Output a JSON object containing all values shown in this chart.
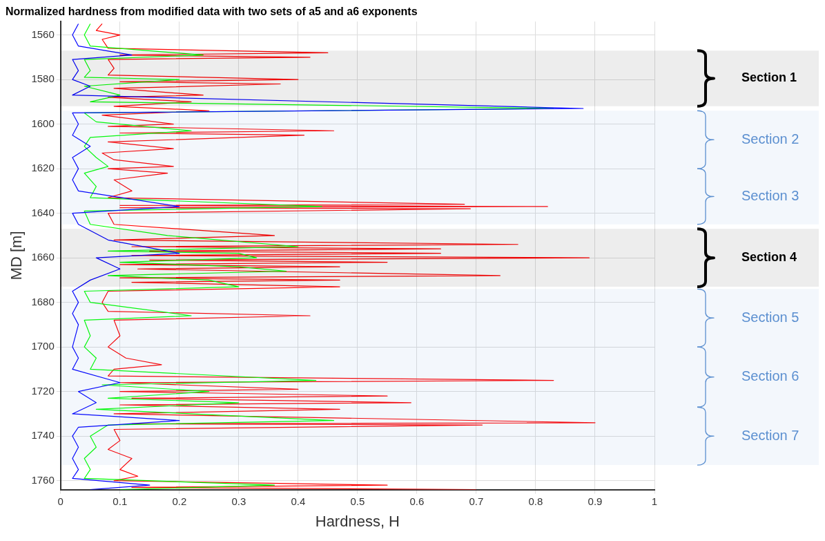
{
  "chart_data": {
    "type": "line",
    "title": "Normalized hardness from modified data with two sets of a5 and a6 exponents",
    "xlabel": "Hardness, H",
    "ylabel": "MD [m]",
    "xlim": [
      0,
      1
    ],
    "xticks": [
      0,
      0.1,
      0.2,
      0.3,
      0.4,
      0.5,
      0.6,
      0.7,
      0.8,
      0.9,
      1
    ],
    "ylim": [
      1764,
      1554
    ],
    "yticks": [
      1560,
      1580,
      1600,
      1620,
      1640,
      1660,
      1680,
      1700,
      1720,
      1740,
      1760
    ],
    "grid": true,
    "legend": false,
    "marker": "none",
    "line_style": "solid",
    "series": [
      {
        "color": "#ff0000",
        "x": [
          0.07,
          0.06,
          0.1,
          0.07,
          0.08,
          0.45,
          0.1,
          0.42,
          0.08,
          0.09,
          0.08,
          0.4,
          0.1,
          0.37,
          0.09,
          0.24,
          0.08,
          0.22,
          0.09,
          0.25,
          0.07,
          0.19,
          0.08,
          0.46,
          0.1,
          0.41,
          0.08,
          0.19,
          0.07,
          0.09,
          0.19,
          0.08,
          0.18,
          0.09,
          0.12,
          0.08,
          0.68,
          0.1,
          0.82,
          0.1,
          0.69,
          0.08,
          0.09,
          0.36,
          0.09,
          0.77,
          0.12,
          0.64,
          0.15,
          0.64,
          0.12,
          0.89,
          0.15,
          0.55,
          0.1,
          0.47,
          0.13,
          0.74,
          0.1,
          0.47,
          0.12,
          0.47,
          0.08,
          0.07,
          0.08,
          0.42,
          0.09,
          0.1,
          0.08,
          0.11,
          0.17,
          0.09,
          0.08,
          0.83,
          0.1,
          0.4,
          0.1,
          0.55,
          0.12,
          0.59,
          0.1,
          0.47,
          0.09,
          0.9,
          0.12,
          0.71,
          0.09,
          0.1,
          0.08,
          0.12,
          0.1,
          0.13,
          0.09,
          0.55,
          0.12,
          0.7
        ],
        "values": [
          1555,
          1558,
          1560,
          1562,
          1566,
          1568,
          1569,
          1570,
          1571,
          1575,
          1578,
          1580,
          1581,
          1582,
          1584,
          1587,
          1588,
          1590,
          1592,
          1594,
          1596,
          1600,
          1601,
          1603,
          1604,
          1605,
          1608,
          1611,
          1613,
          1616,
          1619,
          1620,
          1622,
          1625,
          1630,
          1633,
          1636,
          1636.5,
          1637,
          1637.5,
          1638,
          1640,
          1645,
          1650,
          1652,
          1654,
          1655,
          1656,
          1657,
          1658,
          1659,
          1660,
          1661,
          1662,
          1663,
          1664,
          1665,
          1668,
          1669,
          1670,
          1671,
          1673,
          1675,
          1680,
          1684,
          1686,
          1688,
          1695,
          1700,
          1705,
          1708,
          1710,
          1713,
          1715,
          1716,
          1719,
          1720,
          1722,
          1723,
          1725,
          1726,
          1728,
          1730,
          1734,
          1734.5,
          1735,
          1737,
          1742,
          1746,
          1750,
          1755,
          1758,
          1760,
          1762,
          1763,
          1764
        ]
      },
      {
        "color": "#00ff00",
        "x": [
          0.05,
          0.04,
          0.05,
          0.24,
          0.04,
          0.05,
          0.04,
          0.2,
          0.04,
          0.1,
          0.05,
          0.83,
          0.04,
          0.06,
          0.22,
          0.05,
          0.04,
          0.06,
          0.08,
          0.04,
          0.06,
          0.05,
          0.44,
          0.04,
          0.05,
          0.18,
          0.4,
          0.08,
          0.3,
          0.33,
          0.1,
          0.3,
          0.38,
          0.08,
          0.25,
          0.3,
          0.04,
          0.05,
          0.22,
          0.04,
          0.05,
          0.04,
          0.06,
          0.05,
          0.43,
          0.07,
          0.25,
          0.08,
          0.3,
          0.06,
          0.46,
          0.08,
          0.05,
          0.06,
          0.04,
          0.05,
          0.04,
          0.36,
          0.1
        ],
        "values": [
          1555,
          1560,
          1565,
          1569,
          1571,
          1576,
          1579,
          1580,
          1583,
          1587,
          1590,
          1593,
          1595,
          1599,
          1603,
          1606,
          1610,
          1615,
          1619,
          1622,
          1628,
          1633,
          1637,
          1639,
          1645,
          1650,
          1655,
          1657,
          1658,
          1660,
          1662,
          1664,
          1666,
          1668,
          1670,
          1673,
          1675,
          1680,
          1686,
          1688,
          1695,
          1700,
          1705,
          1710,
          1715,
          1717,
          1720,
          1723,
          1725,
          1728,
          1733,
          1735,
          1740,
          1745,
          1750,
          1755,
          1759,
          1762,
          1764
        ]
      },
      {
        "color": "#0000ff",
        "x": [
          0.03,
          0.02,
          0.03,
          0.12,
          0.02,
          0.03,
          0.02,
          0.05,
          0.02,
          0.88,
          0.02,
          0.03,
          0.02,
          0.05,
          0.02,
          0.03,
          0.02,
          0.03,
          0.2,
          0.02,
          0.03,
          0.08,
          0.2,
          0.06,
          0.1,
          0.05,
          0.02,
          0.03,
          0.02,
          0.03,
          0.02,
          0.03,
          0.02,
          0.1,
          0.03,
          0.06,
          0.02,
          0.2,
          0.03,
          0.02,
          0.03,
          0.02,
          0.03,
          0.02,
          0.15,
          0.05
        ],
        "values": [
          1555,
          1560,
          1565,
          1569,
          1571,
          1576,
          1580,
          1583,
          1587,
          1593,
          1595,
          1600,
          1605,
          1610,
          1615,
          1620,
          1625,
          1630,
          1637,
          1640,
          1645,
          1652,
          1658,
          1660,
          1665,
          1670,
          1675,
          1680,
          1685,
          1690,
          1700,
          1705,
          1710,
          1716,
          1720,
          1725,
          1730,
          1733,
          1736,
          1740,
          1745,
          1750,
          1755,
          1759,
          1762,
          1764
        ]
      }
    ],
    "bands": [
      {
        "axis": "y",
        "from": 1567,
        "to": 1592,
        "label": "Section 1",
        "color": "#000000"
      },
      {
        "axis": "y",
        "from": 1594,
        "to": 1620,
        "label": "Section 2",
        "color": "#5b8fd0"
      },
      {
        "axis": "y",
        "from": 1620,
        "to": 1645,
        "label": "Section 3",
        "color": "#5b8fd0"
      },
      {
        "axis": "y",
        "from": 1647,
        "to": 1673,
        "label": "Section 4",
        "color": "#000000"
      },
      {
        "axis": "y",
        "from": 1674,
        "to": 1700,
        "label": "Section 5",
        "color": "#5b8fd0"
      },
      {
        "axis": "y",
        "from": 1700,
        "to": 1727,
        "label": "Section 6",
        "color": "#5b8fd0"
      },
      {
        "axis": "y",
        "from": 1727,
        "to": 1753,
        "label": "Section 7",
        "color": "#5b8fd0"
      }
    ]
  }
}
